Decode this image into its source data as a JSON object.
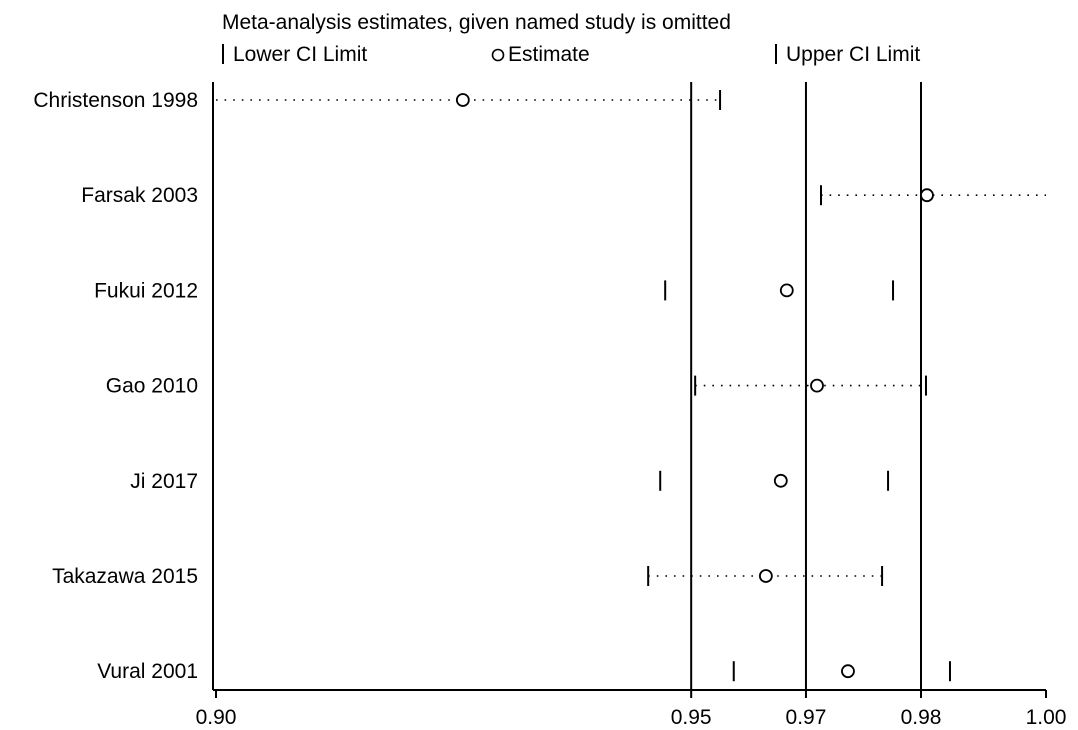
{
  "chart_data": {
    "type": "scatter",
    "title": "Meta-analysis estimates, given named study is omitted",
    "legend": {
      "placement": "top",
      "entries": [
        {
          "symbol": "bar",
          "label": "Lower CI Limit"
        },
        {
          "symbol": "circle",
          "label": "Estimate"
        },
        {
          "symbol": "bar",
          "label": "Upper CI Limit"
        }
      ]
    },
    "x_ticks": [
      {
        "label": "0.90",
        "pos": 0.0
      },
      {
        "label": "0.95",
        "pos": 0.5725
      },
      {
        "label": "0.97",
        "pos": 0.7108
      },
      {
        "label": "0.98",
        "pos": 0.8494
      },
      {
        "label": "1.00",
        "pos": 1.0
      }
    ],
    "reference_lines": [
      0.5725,
      0.7108,
      0.8494
    ],
    "series": [
      {
        "study": "Christenson 1998",
        "lower": 0.0,
        "estimate": 0.2974,
        "upper": 0.6073,
        "dotted": true
      },
      {
        "study": "Farsak 2003",
        "lower": 0.7289,
        "estimate": 0.8566,
        "upper": 1.0,
        "dotted": true
      },
      {
        "study": "Fukui 2012",
        "lower": 0.5412,
        "estimate": 0.6877,
        "upper": 0.8157,
        "dotted": false
      },
      {
        "study": "Gao 2010",
        "lower": 0.5773,
        "estimate": 0.7241,
        "upper": 0.8554,
        "dotted": true
      },
      {
        "study": "Ji 2017",
        "lower": 0.5352,
        "estimate": 0.6805,
        "upper": 0.8097,
        "dotted": false
      },
      {
        "study": "Takazawa 2015",
        "lower": 0.5207,
        "estimate": 0.6625,
        "upper": 0.8025,
        "dotted": true
      },
      {
        "study": "Vural 2001",
        "lower": 0.6238,
        "estimate": 0.7614,
        "upper": 0.8843,
        "dotted": false
      }
    ]
  }
}
